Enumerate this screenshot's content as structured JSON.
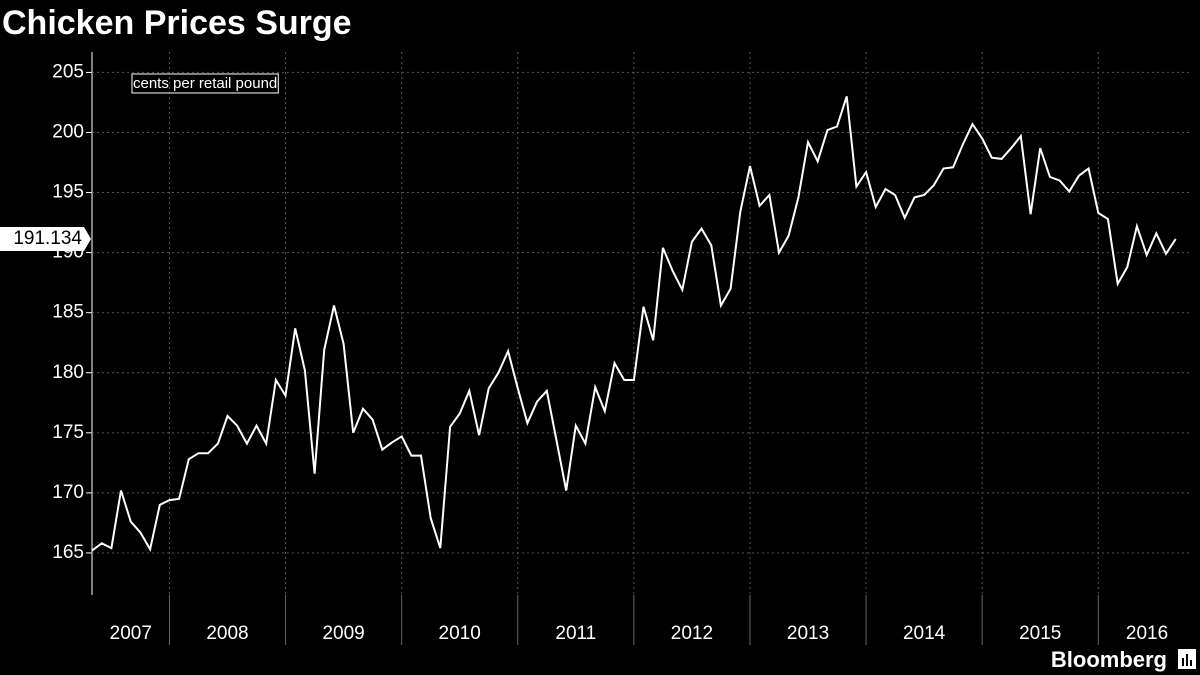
{
  "chart_data": {
    "type": "line",
    "title": "Chicken Prices Surge",
    "annotation": "cents per retail pound",
    "source": "Bloomberg",
    "x": [
      2007.333,
      2007.417,
      2007.5,
      2007.583,
      2007.667,
      2007.75,
      2007.833,
      2007.917,
      2008,
      2008.083,
      2008.167,
      2008.25,
      2008.333,
      2008.417,
      2008.5,
      2008.583,
      2008.667,
      2008.75,
      2008.833,
      2008.917,
      2009,
      2009.083,
      2009.167,
      2009.25,
      2009.333,
      2009.417,
      2009.5,
      2009.583,
      2009.667,
      2009.75,
      2009.833,
      2009.917,
      2010,
      2010.083,
      2010.167,
      2010.25,
      2010.333,
      2010.417,
      2010.5,
      2010.583,
      2010.667,
      2010.75,
      2010.833,
      2010.917,
      2011,
      2011.083,
      2011.167,
      2011.25,
      2011.333,
      2011.417,
      2011.5,
      2011.583,
      2011.667,
      2011.75,
      2011.833,
      2011.917,
      2012,
      2012.083,
      2012.167,
      2012.25,
      2012.333,
      2012.417,
      2012.5,
      2012.583,
      2012.667,
      2012.75,
      2012.833,
      2012.917,
      2013,
      2013.083,
      2013.167,
      2013.25,
      2013.333,
      2013.417,
      2013.5,
      2013.583,
      2013.667,
      2013.75,
      2013.833,
      2013.917,
      2014,
      2014.083,
      2014.167,
      2014.25,
      2014.333,
      2014.417,
      2014.5,
      2014.583,
      2014.667,
      2014.75,
      2014.833,
      2014.917,
      2015,
      2015.083,
      2015.167,
      2015.25,
      2015.333,
      2015.417,
      2015.5,
      2015.583,
      2015.667,
      2015.75,
      2015.833,
      2015.917,
      2016,
      2016.083,
      2016.167,
      2016.25,
      2016.333,
      2016.417,
      2016.5,
      2016.583,
      2016.667
    ],
    "values": [
      165.2,
      165.8,
      165.4,
      170.2,
      167.6,
      166.7,
      165.3,
      169.0,
      169.4,
      169.5,
      172.8,
      173.3,
      173.3,
      174.1,
      176.4,
      175.6,
      174.1,
      175.6,
      174.1,
      179.4,
      178.1,
      183.7,
      180.2,
      171.6,
      181.9,
      185.6,
      182.4,
      175.0,
      177.0,
      176.1,
      173.6,
      174.2,
      174.7,
      173.1,
      173.1,
      167.9,
      165.4,
      175.5,
      176.6,
      178.5,
      174.8,
      178.7,
      180.0,
      181.8,
      178.7,
      175.8,
      177.6,
      178.5,
      174.4,
      170.2,
      175.6,
      174.1,
      178.8,
      176.8,
      180.8,
      179.4,
      179.4,
      185.5,
      182.7,
      190.4,
      188.5,
      186.9,
      190.9,
      192.0,
      190.6,
      185.6,
      187.0,
      193.4,
      197.2,
      193.9,
      194.8,
      190.0,
      191.4,
      194.6,
      199.2,
      197.6,
      200.2,
      200.5,
      203.0,
      195.5,
      196.7,
      193.8,
      195.3,
      194.8,
      192.9,
      194.6,
      194.8,
      195.6,
      197.0,
      197.1,
      199.0,
      200.7,
      199.5,
      197.9,
      197.8,
      198.7,
      199.7,
      193.2,
      198.7,
      196.3,
      196.0,
      195.1,
      196.4,
      197.0,
      193.3,
      192.8,
      187.4,
      188.8,
      192.2,
      189.8,
      191.6,
      189.9,
      191.134
    ],
    "color": "#ffffff",
    "xlim": [
      2007.333,
      2016.79
    ],
    "xticks": [
      {
        "value": 2007.667,
        "label": "2007"
      },
      {
        "value": 2008.5,
        "label": "2008"
      },
      {
        "value": 2009.5,
        "label": "2009"
      },
      {
        "value": 2010.5,
        "label": "2010"
      },
      {
        "value": 2011.5,
        "label": "2011"
      },
      {
        "value": 2012.5,
        "label": "2012"
      },
      {
        "value": 2013.5,
        "label": "2013"
      },
      {
        "value": 2014.5,
        "label": "2014"
      },
      {
        "value": 2015.5,
        "label": "2015"
      },
      {
        "value": 2016.42,
        "label": "2016"
      }
    ],
    "xgrid": [
      2008,
      2009,
      2010,
      2011,
      2012,
      2013,
      2014,
      2015,
      2016
    ],
    "ylim": [
      161.5,
      206.7
    ],
    "yticks": [
      165,
      170,
      175,
      180,
      185,
      190,
      195,
      200,
      205
    ],
    "grid": true
  }
}
